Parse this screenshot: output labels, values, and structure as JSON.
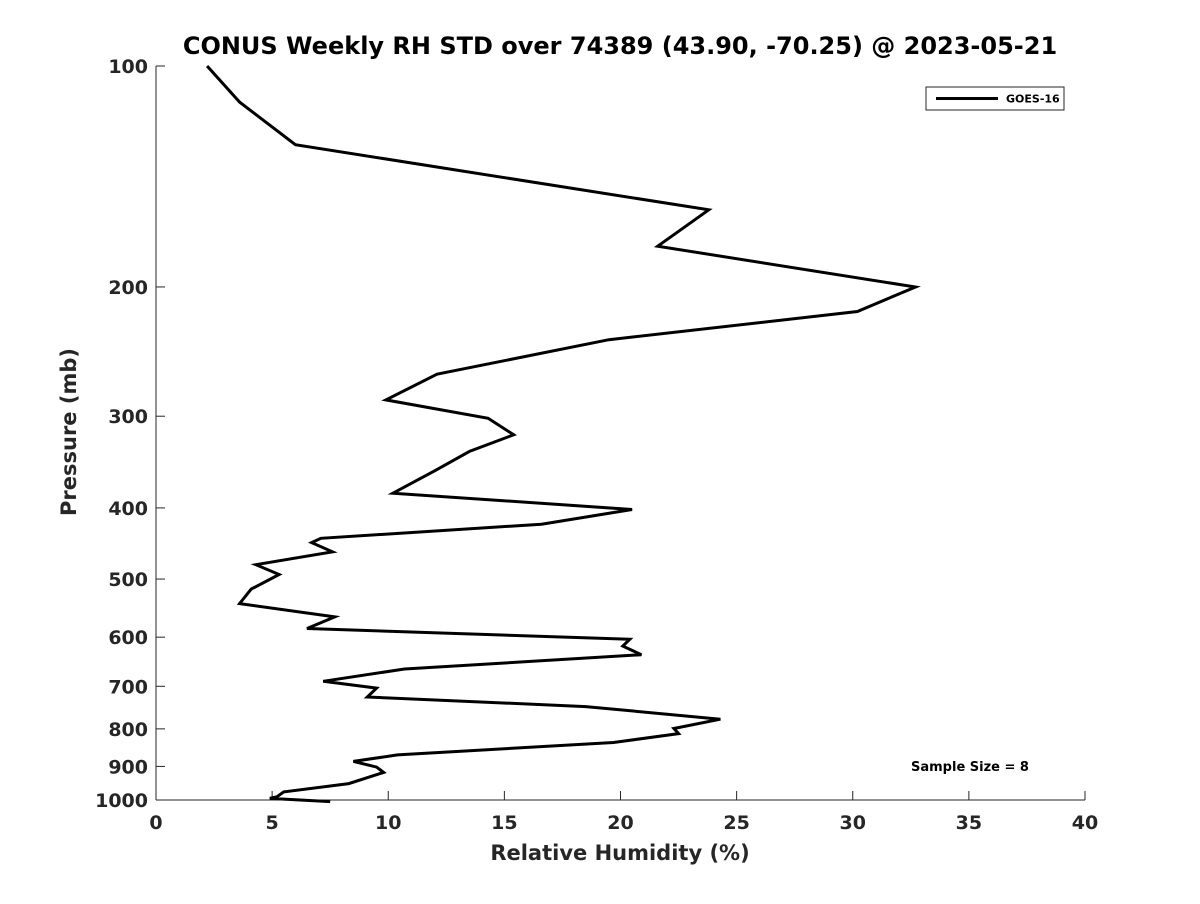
{
  "chart_data": {
    "type": "line",
    "title": "CONUS Weekly RH STD over 74389 (43.90, -70.25) @ 2023-05-21",
    "xlabel": "Relative Humidity (%)",
    "ylabel": "Pressure (mb)",
    "xlim": [
      0,
      40
    ],
    "ylim": [
      100,
      1000
    ],
    "yscale": "log",
    "yreversed": true,
    "xticks": [
      0,
      5,
      10,
      15,
      20,
      25,
      30,
      35,
      40
    ],
    "yticks": [
      100,
      200,
      300,
      400,
      500,
      600,
      700,
      800,
      900,
      1000
    ],
    "grid": false,
    "legend_position": "top-right",
    "annotation": "Sample Size = 8",
    "series": [
      {
        "name": "GOES-16",
        "color": "#000000",
        "x": [
          2.2,
          3.6,
          6.0,
          23.8,
          21.6,
          32.7,
          30.2,
          19.5,
          12.1,
          9.9,
          14.3,
          15.4,
          13.5,
          12.0,
          10.2,
          20.5,
          16.6,
          7.1,
          6.7,
          7.6,
          4.3,
          5.3,
          4.1,
          3.6,
          7.7,
          6.5,
          20.4,
          20.1,
          20.9,
          10.7,
          7.2,
          9.5,
          9.1,
          18.5,
          24.3,
          22.3,
          22.5,
          19.7,
          10.4,
          8.5,
          9.5,
          9.8,
          8.3,
          5.5,
          5.2,
          5.0,
          4.9,
          7.5
        ],
        "y": [
          100,
          112,
          128,
          157,
          176,
          200,
          216,
          236,
          263,
          285,
          302,
          318,
          335,
          356,
          382,
          402,
          421,
          440,
          446,
          459,
          478,
          493,
          516,
          540,
          563,
          584,
          604,
          617,
          634,
          663,
          689,
          704,
          724,
          746,
          776,
          799,
          812,
          835,
          868,
          886,
          902,
          917,
          950,
          975,
          990,
          993,
          995,
          1005
        ]
      }
    ]
  }
}
